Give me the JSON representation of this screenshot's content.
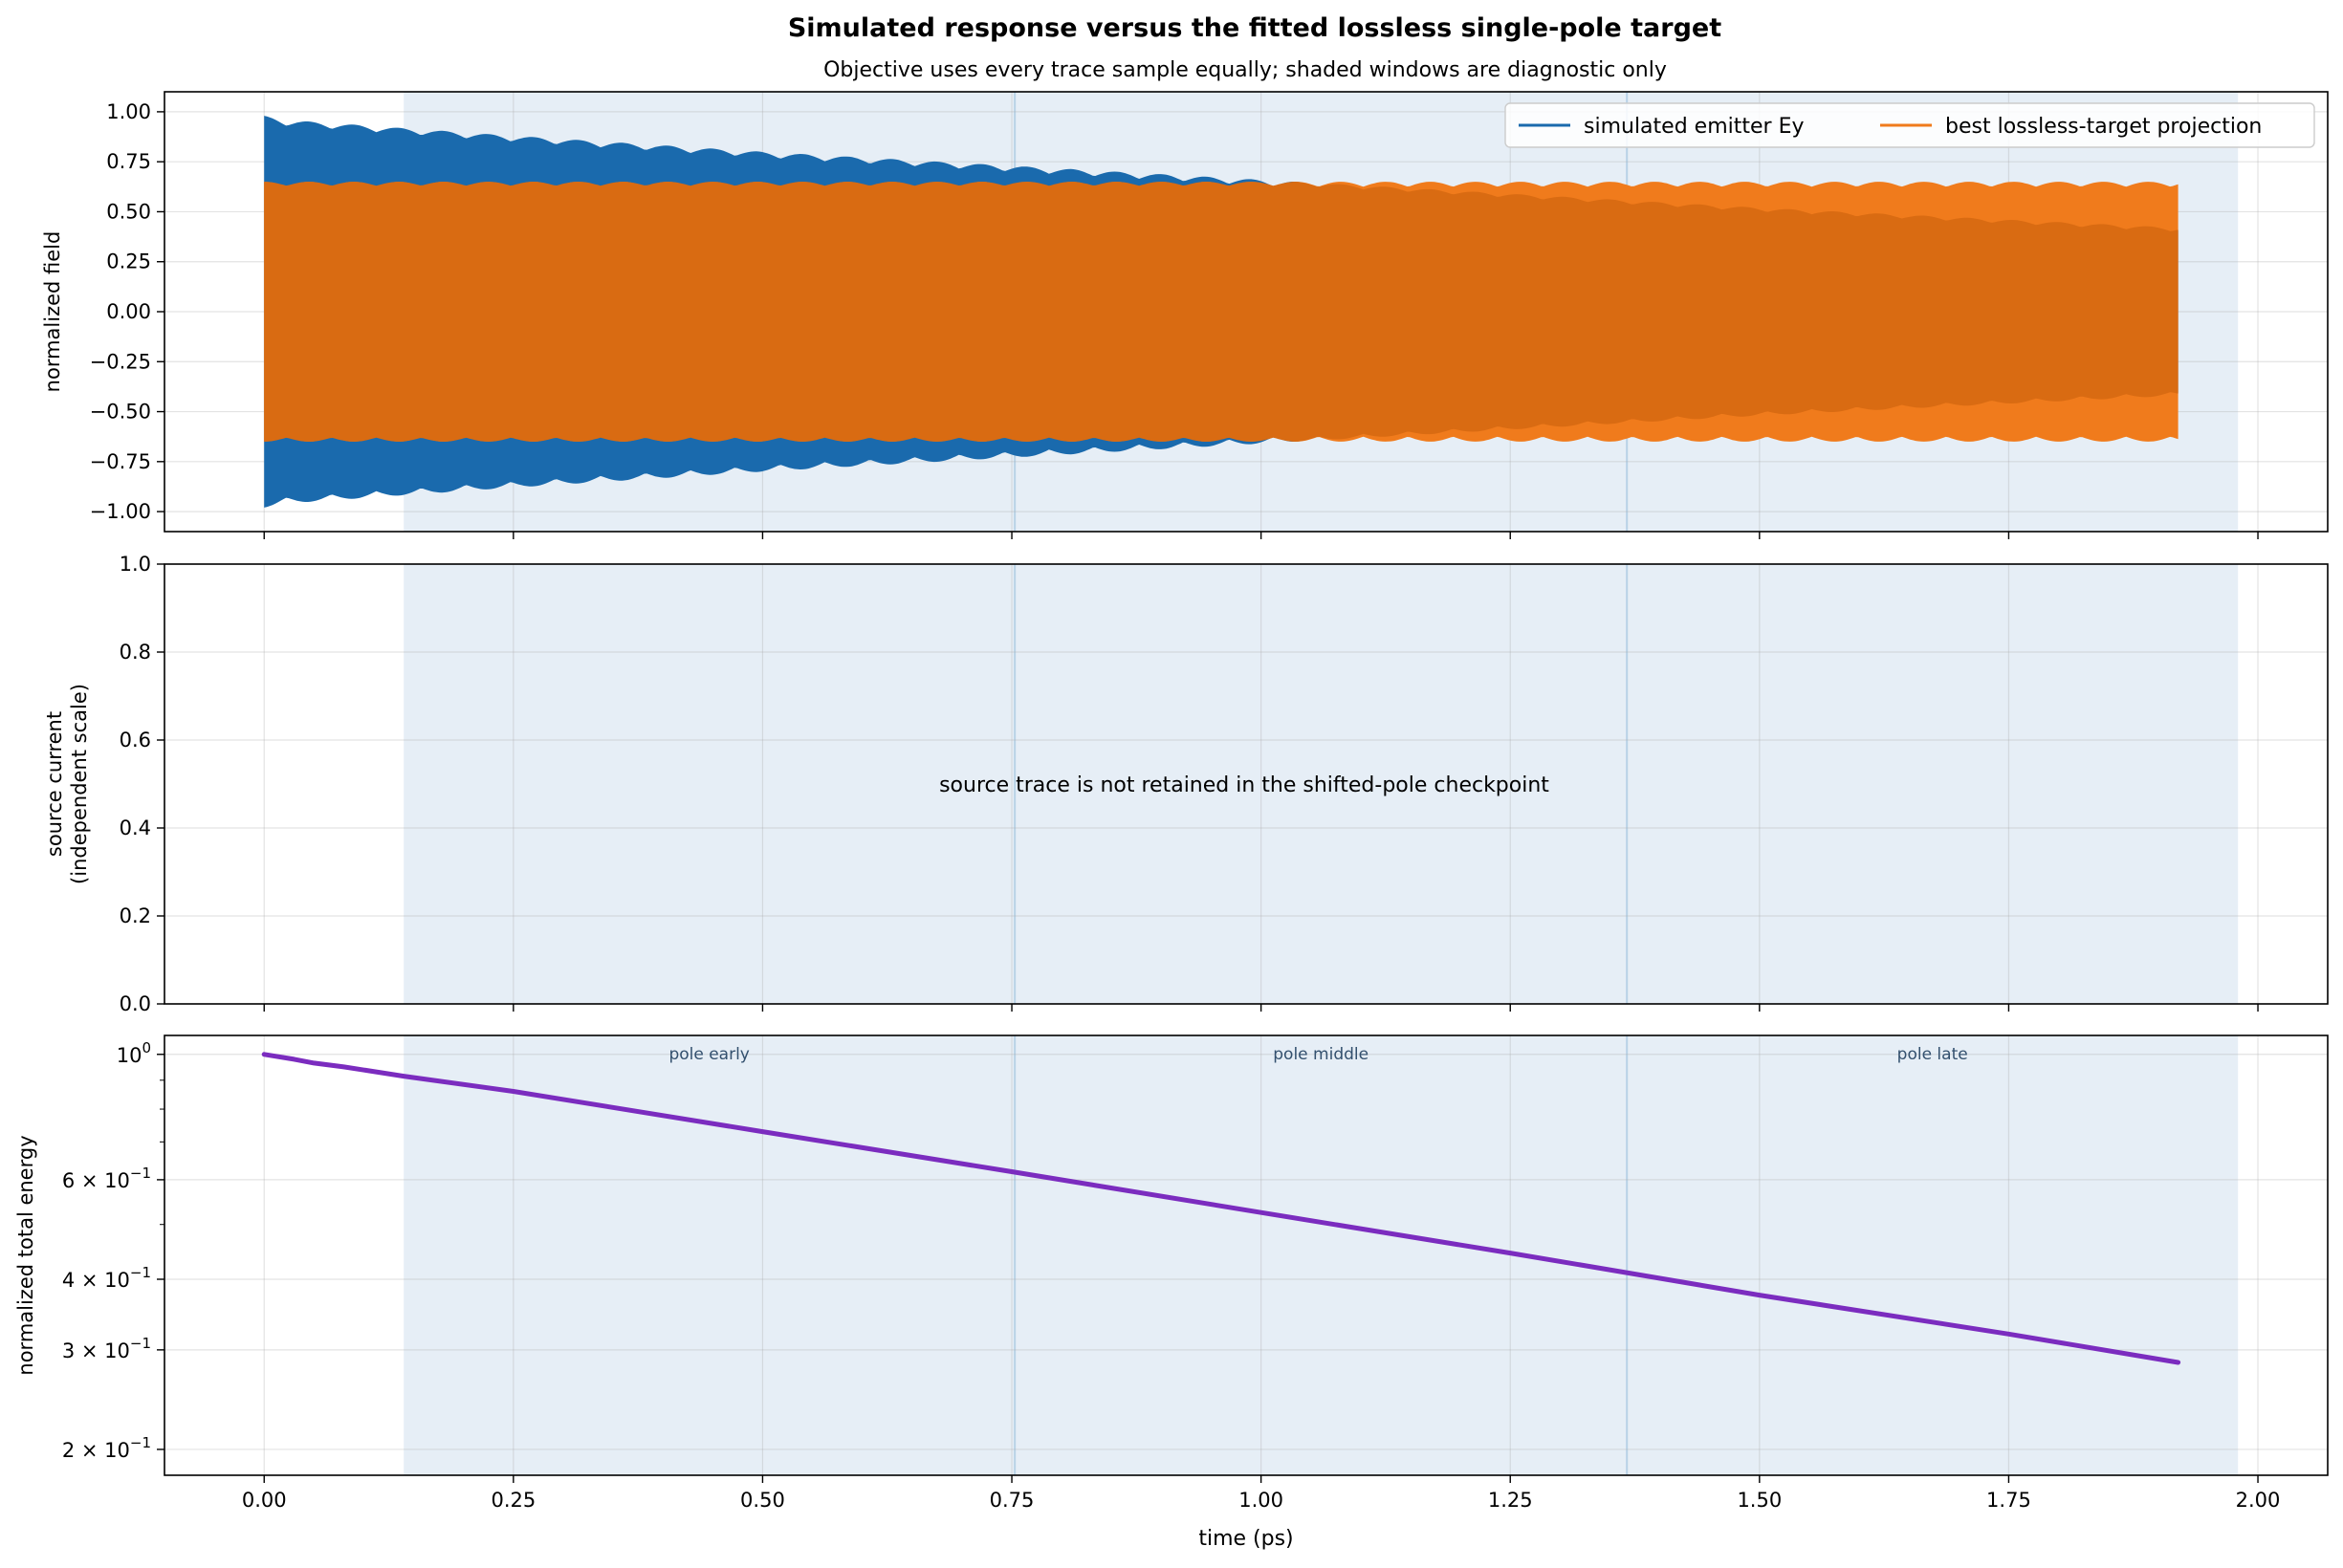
{
  "figure": {
    "title": "Simulated response versus the fitted lossless single-pole target",
    "subtitle": "Objective uses every trace sample equally; shaded windows are diagnostic only"
  },
  "colors": {
    "simulated": "#1a6aad",
    "target": "#f07b1c",
    "overlap": "#d96b12",
    "energy": "#7b2cbf",
    "window_fill": "#e6eef6",
    "window_edge": "#b8d2e6",
    "annotation": "#33506e"
  },
  "chart_data": [
    {
      "type": "line",
      "panel": "field",
      "ylabel": "normalized field",
      "xlim": [
        -0.1,
        2.07
      ],
      "ylim": [
        -1.1,
        1.1
      ],
      "yticks": [
        -1.0,
        -0.75,
        -0.5,
        -0.25,
        0.0,
        0.25,
        0.5,
        0.75,
        1.0
      ],
      "ytick_labels": [
        "−1.00",
        "−0.75",
        "−0.50",
        "−0.25",
        "0.00",
        "0.25",
        "0.50",
        "0.75",
        "1.00"
      ],
      "legend": {
        "placement": "top-right",
        "columns": 2
      },
      "series": [
        {
          "name": "simulated emitter Ey",
          "x_range_ps": [
            0.0,
            1.92
          ],
          "envelope": {
            "x": [
              0.0,
              0.02,
              0.25,
              0.5,
              0.75,
              1.0,
              1.25,
              1.5,
              1.75,
              1.92
            ],
            "y": [
              0.98,
              0.96,
              0.88,
              0.8,
              0.73,
              0.66,
              0.59,
              0.52,
              0.46,
              0.42
            ]
          }
        },
        {
          "name": "best lossless-target projection",
          "x_range_ps": [
            0.0,
            1.92
          ],
          "envelope": {
            "x": [
              0.0,
              1.92
            ],
            "y": [
              0.65,
              0.65
            ]
          }
        }
      ]
    },
    {
      "type": "line",
      "panel": "source",
      "ylabel": [
        "source current",
        "(independent scale)"
      ],
      "ylim": [
        0.0,
        1.0
      ],
      "yticks": [
        0.0,
        0.2,
        0.4,
        0.6,
        0.8,
        1.0
      ],
      "ytick_labels": [
        "0.0",
        "0.2",
        "0.4",
        "0.6",
        "0.8",
        "1.0"
      ],
      "annotation": "source trace is not retained in the shifted-pole checkpoint"
    },
    {
      "type": "line",
      "panel": "energy",
      "ylabel": "normalized total energy",
      "xlabel": "time (ps)",
      "yscale": "log",
      "ylim": [
        0.18,
        1.08
      ],
      "yticks": [
        {
          "value": 1.0,
          "base": "10",
          "exp": "0"
        },
        {
          "value": 0.6,
          "base": "6 × 10",
          "exp": "−1"
        },
        {
          "value": 0.4,
          "base": "4 × 10",
          "exp": "−1"
        },
        {
          "value": 0.3,
          "base": "3 × 10",
          "exp": "−1"
        },
        {
          "value": 0.2,
          "base": "2 × 10",
          "exp": "−1"
        }
      ],
      "minor_yticks": [
        0.5,
        0.7,
        0.8,
        0.9
      ],
      "series": [
        {
          "name": "",
          "x": [
            0.0,
            0.03,
            0.05,
            0.08,
            0.14,
            0.25,
            0.5,
            0.75,
            1.0,
            1.25,
            1.5,
            1.75,
            1.92
          ],
          "y": [
            1.0,
            0.98,
            0.965,
            0.95,
            0.915,
            0.86,
            0.73,
            0.62,
            0.525,
            0.445,
            0.375,
            0.32,
            0.285
          ]
        }
      ],
      "window_labels": [
        "pole early",
        "pole middle",
        "pole late"
      ]
    }
  ],
  "shared_x": {
    "ticks": [
      0.0,
      0.25,
      0.5,
      0.75,
      1.0,
      1.25,
      1.5,
      1.75,
      2.0
    ],
    "tick_labels": [
      "0.00",
      "0.25",
      "0.50",
      "0.75",
      "1.00",
      "1.25",
      "1.50",
      "1.75",
      "2.00"
    ],
    "grid": true
  },
  "windows": [
    {
      "name": "pole early",
      "start_ps": 0.14,
      "end_ps": 0.753
    },
    {
      "name": "pole middle",
      "start_ps": 0.753,
      "end_ps": 1.367
    },
    {
      "name": "pole late",
      "start_ps": 1.367,
      "end_ps": 1.98
    }
  ]
}
